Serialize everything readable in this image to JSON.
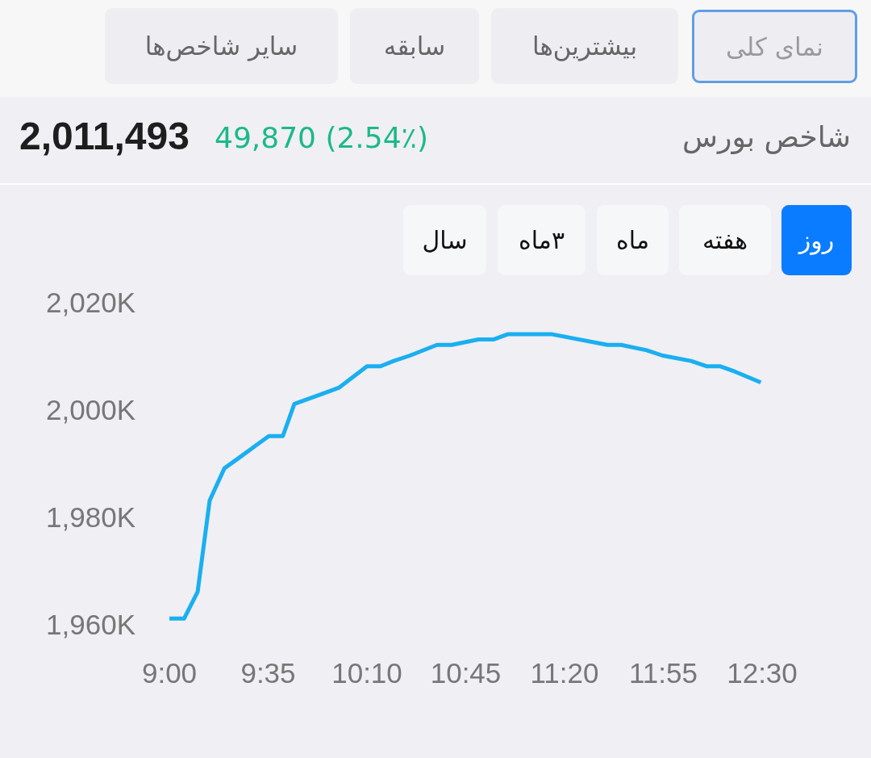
{
  "chart_data": {
    "type": "line",
    "title": "شاخص بورس",
    "subtitle": "2,011,493",
    "annotations": [
      "نمای کلی",
      "بیشترین‌ها",
      "سابقه",
      "سایر شاخص‌ها",
      "49,870 (2.54٪)",
      "روز",
      "هفته",
      "ماه",
      "۳ماه",
      "سال"
    ],
    "x": [
      9.0,
      9.087,
      9.167,
      9.238,
      9.325,
      9.413,
      9.5,
      9.587,
      9.67,
      9.738,
      9.913,
      10.0,
      10.167,
      10.246,
      10.325,
      10.42,
      10.58,
      10.667,
      10.825,
      10.913,
      11.0,
      11.254,
      11.587,
      11.667,
      11.818,
      11.913,
      12.08,
      12.175,
      12.254,
      12.341,
      12.492
    ],
    "series": [
      {
        "color": "#1aaff0",
        "values": [
          1961,
          1961,
          1966,
          1983,
          1989,
          1991,
          1993,
          1995,
          1995,
          2001,
          2003,
          2004,
          2008,
          2008,
          2009,
          2010,
          2012,
          2012,
          2013,
          2013,
          2014,
          2014,
          2012,
          2012,
          2011,
          2010,
          2009,
          2008,
          2008,
          2007,
          2005
        ]
      }
    ],
    "xlim": [
      9,
      12.5
    ],
    "ylim": [
      1960,
      2020
    ],
    "xticks": [
      {
        "value": 9,
        "label": "9:00"
      },
      {
        "value": 9.583333,
        "label": "9:35"
      },
      {
        "value": 10.166667,
        "label": "10:10"
      },
      {
        "value": 10.75,
        "label": "10:45"
      },
      {
        "value": 11.333333,
        "label": "11:20"
      },
      {
        "value": 11.916667,
        "label": "11:55"
      },
      {
        "value": 12.5,
        "label": "12:30"
      }
    ],
    "yticks": [
      {
        "value": 1960,
        "label": "1,960K"
      },
      {
        "value": 1980,
        "label": "1,980K"
      },
      {
        "value": 2000,
        "label": "2,000K"
      },
      {
        "value": 2020,
        "label": "2,020K"
      }
    ],
    "grid": false
  }
}
